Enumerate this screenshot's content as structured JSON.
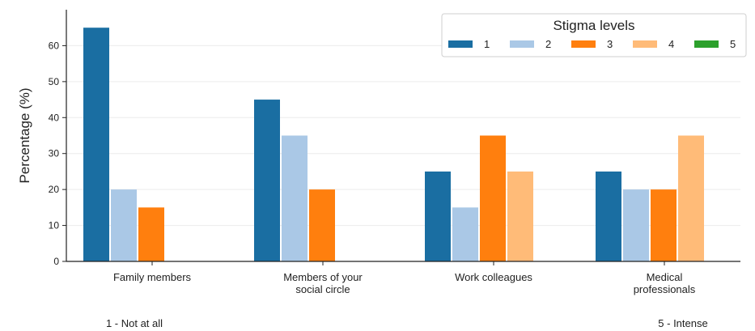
{
  "chart_data": {
    "type": "bar",
    "categories": [
      [
        "Family members"
      ],
      [
        "Members of your",
        "social circle"
      ],
      [
        "Work colleagues"
      ],
      [
        "Medical",
        "professionals"
      ]
    ],
    "series": [
      {
        "name": "1",
        "color": "#1a6ea2",
        "values": [
          65,
          45,
          25,
          25
        ]
      },
      {
        "name": "2",
        "color": "#aac8e6",
        "values": [
          20,
          35,
          15,
          20
        ]
      },
      {
        "name": "3",
        "color": "#ff7f0e",
        "values": [
          15,
          20,
          35,
          20
        ]
      },
      {
        "name": "4",
        "color": "#ffbb78",
        "values": [
          0,
          0,
          25,
          35
        ]
      },
      {
        "name": "5",
        "color": "#2ca02c",
        "values": [
          0,
          0,
          0,
          0
        ]
      }
    ],
    "ylabel": "Percentage (%)",
    "xlabel": "",
    "ylim": [
      0,
      70
    ],
    "yticks": [
      0,
      10,
      20,
      30,
      40,
      50,
      60
    ],
    "grid": "horizontal",
    "legend": {
      "title": "Stigma levels",
      "placement": "top-right",
      "ncol": 5
    },
    "notes": {
      "left": "1 - Not at all",
      "right": "5 - Intense"
    }
  }
}
